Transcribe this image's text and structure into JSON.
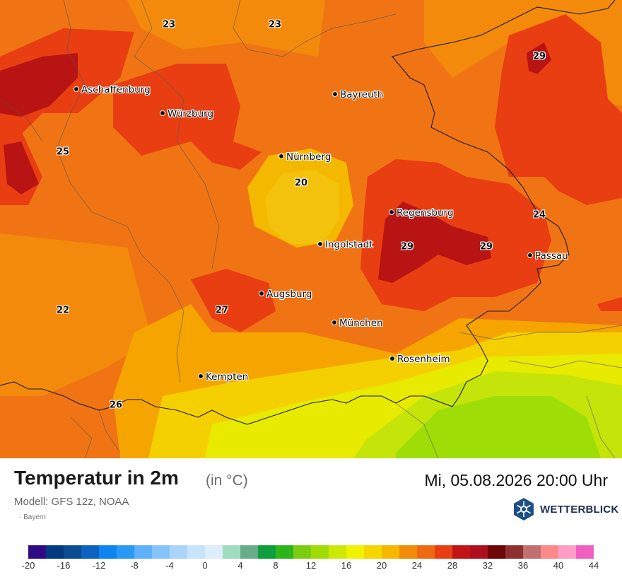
{
  "header": {
    "title": "Temperatur in 2m",
    "unit": "(in °C)",
    "datetime": "Mi, 05.08.2026 20:00 Uhr",
    "model": "Modell: GFS 12z, NOAA",
    "region": "Bayern"
  },
  "brand": {
    "name": "WETTERBLICK",
    "icon": "snowflake-sun-hexagon-icon",
    "color": "#1c4f86"
  },
  "cities": [
    {
      "name": "Aschaffenburg"
    },
    {
      "name": "Würzburg"
    },
    {
      "name": "Bayreuth"
    },
    {
      "name": "Nürnberg"
    },
    {
      "name": "Regensburg"
    },
    {
      "name": "Ingolstadt"
    },
    {
      "name": "Passau"
    },
    {
      "name": "Augsburg"
    },
    {
      "name": "München"
    },
    {
      "name": "Rosenheim"
    },
    {
      "name": "Kempten"
    }
  ],
  "values": [
    "23",
    "23",
    "29",
    "25",
    "20",
    "24",
    "29",
    "29",
    "22",
    "27",
    "26"
  ],
  "legend": {
    "colors": [
      "#2e0a84",
      "#063a7e",
      "#0a4c8e",
      "#0b62c2",
      "#0c85ef",
      "#2999f5",
      "#5fb0f8",
      "#86c3fa",
      "#aad4fb",
      "#c8e3fc",
      "#dcedfd",
      "#9fdcc0",
      "#6aac8a",
      "#0f9e3c",
      "#2db51b",
      "#7ccc12",
      "#9ede06",
      "#cce90a",
      "#f0f200",
      "#f5d600",
      "#f5b800",
      "#f28c08",
      "#ee6a10",
      "#e83e12",
      "#c21414",
      "#ac101c",
      "#6e0606",
      "#8e3030",
      "#c07070",
      "#fa8a8a",
      "#fa9ec6",
      "#f060c0"
    ],
    "ticks": [
      "-20",
      "-16",
      "-12",
      "-8",
      "-4",
      "0",
      "4",
      "8",
      "12",
      "16",
      "20",
      "24",
      "28",
      "32",
      "36",
      "40",
      "44"
    ]
  }
}
